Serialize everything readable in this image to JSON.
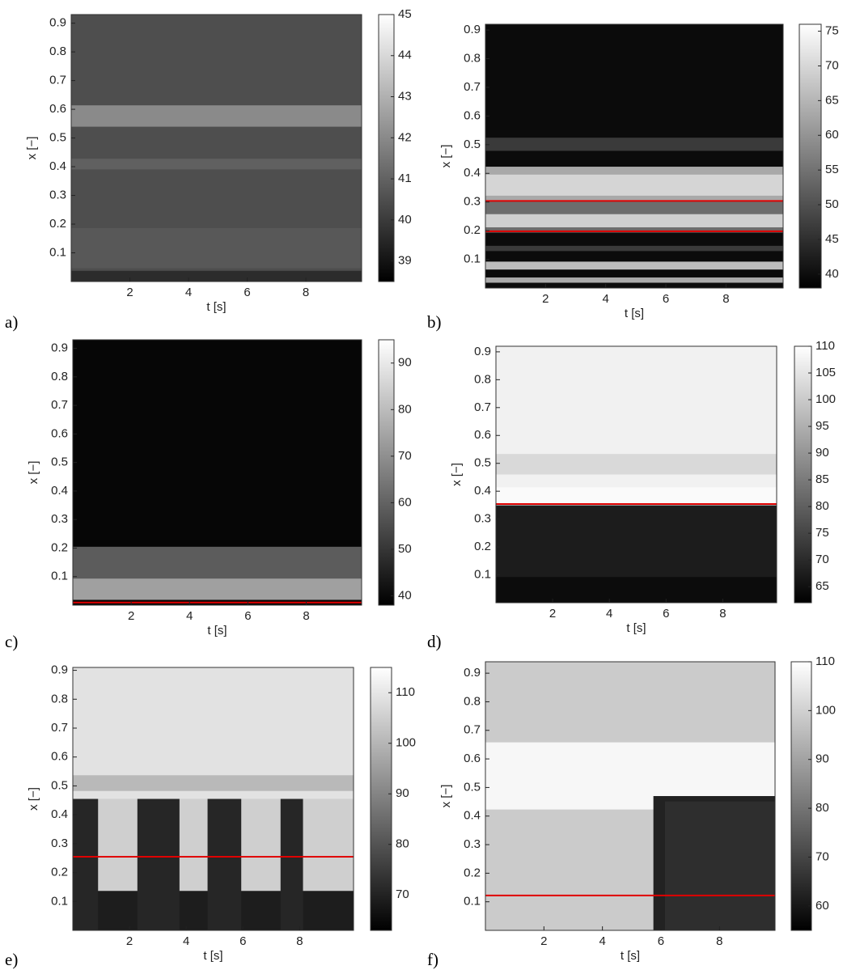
{
  "chart_data": [
    {
      "type": "heatmap",
      "panel": "a)",
      "xlabel": "t [s]",
      "ylabel": "x [−]",
      "xlim": [
        0,
        9.9
      ],
      "ylim": [
        0,
        0.93
      ],
      "xticks": [
        2,
        4,
        6,
        8
      ],
      "yticks": [
        0.1,
        0.2,
        0.3,
        0.4,
        0.5,
        0.6,
        0.7,
        0.8,
        0.9
      ],
      "clim": [
        38.5,
        45
      ],
      "cticks": [
        39,
        40,
        41,
        42,
        43,
        44,
        45
      ]
    },
    {
      "type": "heatmap",
      "panel": "b)",
      "xlabel": "t [s]",
      "ylabel": "x [−]",
      "xlim": [
        0,
        9.9
      ],
      "ylim": [
        0,
        0.92
      ],
      "xticks": [
        2,
        4,
        6,
        8
      ],
      "yticks": [
        0.1,
        0.2,
        0.3,
        0.4,
        0.5,
        0.6,
        0.7,
        0.8,
        0.9
      ],
      "clim": [
        38,
        76
      ],
      "cticks": [
        40,
        45,
        50,
        55,
        60,
        65,
        70,
        75
      ]
    },
    {
      "type": "heatmap",
      "panel": "c)",
      "xlabel": "t [s]",
      "ylabel": "x [−]",
      "xlim": [
        0,
        9.9
      ],
      "ylim": [
        0,
        0.93
      ],
      "xticks": [
        2,
        4,
        6,
        8
      ],
      "yticks": [
        0.1,
        0.2,
        0.3,
        0.4,
        0.5,
        0.6,
        0.7,
        0.8,
        0.9
      ],
      "clim": [
        38,
        95
      ],
      "cticks": [
        40,
        50,
        60,
        70,
        80,
        90
      ]
    },
    {
      "type": "heatmap",
      "panel": "d)",
      "xlabel": "t [s]",
      "ylabel": "x [−]",
      "xlim": [
        0,
        9.9
      ],
      "ylim": [
        0,
        0.92
      ],
      "xticks": [
        2,
        4,
        6,
        8
      ],
      "yticks": [
        0.1,
        0.2,
        0.3,
        0.4,
        0.5,
        0.6,
        0.7,
        0.8,
        0.9
      ],
      "clim": [
        62,
        110
      ],
      "cticks": [
        65,
        70,
        75,
        80,
        85,
        90,
        95,
        100,
        105,
        110
      ]
    },
    {
      "type": "heatmap",
      "panel": "e)",
      "xlabel": "t [s]",
      "ylabel": "x [−]",
      "xlim": [
        0,
        9.9
      ],
      "ylim": [
        0,
        0.91
      ],
      "xticks": [
        2,
        4,
        6,
        8
      ],
      "yticks": [
        0.1,
        0.2,
        0.3,
        0.4,
        0.5,
        0.6,
        0.7,
        0.8,
        0.9
      ],
      "clim": [
        63,
        115
      ],
      "cticks": [
        70,
        80,
        90,
        100,
        110
      ]
    },
    {
      "type": "heatmap",
      "panel": "f)",
      "xlabel": "t [s]",
      "ylabel": "x [−]",
      "xlim": [
        0,
        9.9
      ],
      "ylim": [
        0,
        0.94
      ],
      "xticks": [
        2,
        4,
        6,
        8
      ],
      "yticks": [
        0.1,
        0.2,
        0.3,
        0.4,
        0.5,
        0.6,
        0.7,
        0.8,
        0.9
      ],
      "clim": [
        55,
        110
      ],
      "cticks": [
        60,
        70,
        80,
        90,
        100,
        110
      ]
    }
  ]
}
